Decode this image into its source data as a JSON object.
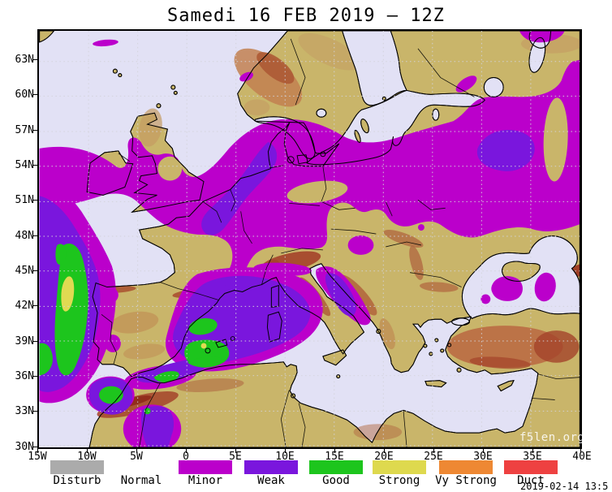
{
  "title": "Samedi 16 FEB 2019 — 12Z",
  "map": {
    "watermark": "f5len.org",
    "partial_timestamp": "2019-02-14 13:5",
    "lat_labels": [
      "63N",
      "60N",
      "57N",
      "54N",
      "51N",
      "48N",
      "45N",
      "42N",
      "39N",
      "36N",
      "33N",
      "30N"
    ],
    "lon_labels": [
      "15W",
      "10W",
      "5W",
      "0",
      "5E",
      "10E",
      "15E",
      "20E",
      "25E",
      "30E",
      "35E",
      "40E"
    ]
  },
  "legend": {
    "items": [
      {
        "label": "Disturb",
        "color": "#ababab"
      },
      {
        "label": "Normal",
        "color": "#ffffff"
      },
      {
        "label": "Minor",
        "color": "#bb00cb"
      },
      {
        "label": "Weak",
        "color": "#7a16dd"
      },
      {
        "label": "Good",
        "color": "#1dc51d"
      },
      {
        "label": "Strong",
        "color": "#ded94e"
      },
      {
        "label": "Vy Strong",
        "color": "#ee8833"
      },
      {
        "label": "Duct",
        "color": "#ee4141"
      }
    ]
  },
  "colors": {
    "sea": "#e2e1f5",
    "land": "#c9b56a",
    "minor": "#bb00cb",
    "weak": "#7a16dd",
    "good": "#1dc51d",
    "strong": "#e0da52",
    "grid": "#d3d3da",
    "coast": "#000000"
  }
}
